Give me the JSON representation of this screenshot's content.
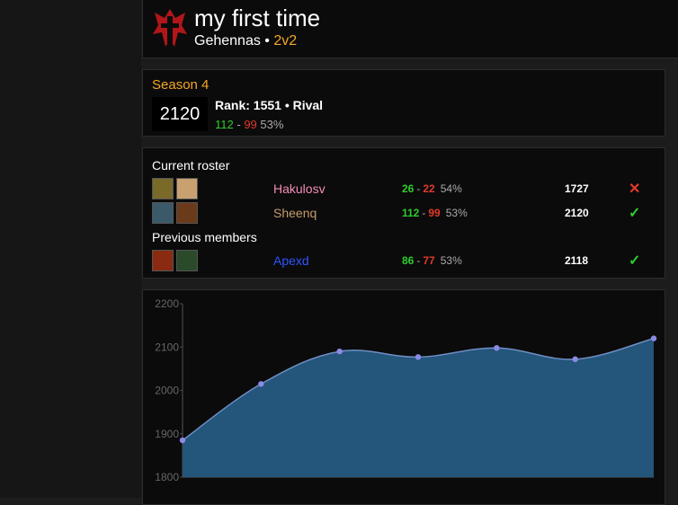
{
  "header": {
    "title": "my first time",
    "realm": "Gehennas",
    "separator": "•",
    "bracket": "2v2"
  },
  "season": {
    "name": "Season 4",
    "rating": 2120,
    "rank": "Rank: 1551 • Rival",
    "wins": 112,
    "dash": "-",
    "losses": 99,
    "pct": "53%"
  },
  "roster": {
    "current_title": "Current roster",
    "current": [
      {
        "name": "Hakulosv",
        "color": "#f48cba",
        "wins": 26,
        "dash": "-",
        "losses": 22,
        "pct": "54%",
        "rating": 1727,
        "status": "✕",
        "status_color": "#e0392b"
      },
      {
        "name": "Sheenq",
        "color": "#c69b6d",
        "wins": 112,
        "dash": "-",
        "losses": 99,
        "pct": "53%",
        "rating": 2120,
        "status": "✓",
        "status_color": "#2ecc2e"
      }
    ],
    "previous_title": "Previous members",
    "previous": [
      {
        "name": "Apexd",
        "color": "#2f55ff",
        "wins": 86,
        "dash": "-",
        "losses": 77,
        "pct": "53%",
        "rating": 2118,
        "status": "✓",
        "status_color": "#2ecc2e"
      }
    ]
  },
  "chart_data": {
    "type": "area",
    "categories": [
      null,
      null,
      null,
      null,
      null,
      null,
      null
    ],
    "values": [
      1885,
      2015,
      2090,
      2077,
      2098,
      2072,
      2120
    ],
    "color": "#24557a",
    "line_color": "#6f8fc4",
    "point_color": "#8a8ae6",
    "ylim": [
      1800,
      2200
    ],
    "yticks": [
      1800,
      1900,
      2000,
      2100,
      2200
    ],
    "grid": false
  }
}
